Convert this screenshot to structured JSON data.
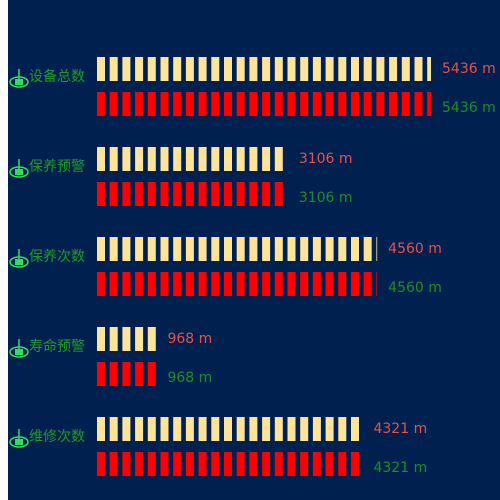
{
  "chart_data": {
    "type": "pictorial-bar",
    "categories": [
      "设备总数",
      "保养预警",
      "保养次数",
      "寿命预警",
      "维修次数"
    ],
    "category_color": "#1f9a2a",
    "background": "#00214f",
    "series": [
      {
        "color": "#fde49a",
        "label_color": "#e8504a",
        "values": [
          5436,
          3106,
          4560,
          968,
          4321
        ],
        "value_labels": [
          "5436 m",
          "3106 m",
          "4560 m",
          "968 m",
          "4321 m"
        ]
      },
      {
        "color": "#ff0000",
        "label_color": "#1a8f24",
        "values": [
          5436,
          3106,
          4560,
          968,
          4321
        ],
        "value_labels": [
          "5436 m",
          "3106 m",
          "4560 m",
          "968 m",
          "4321 m"
        ]
      }
    ]
  }
}
